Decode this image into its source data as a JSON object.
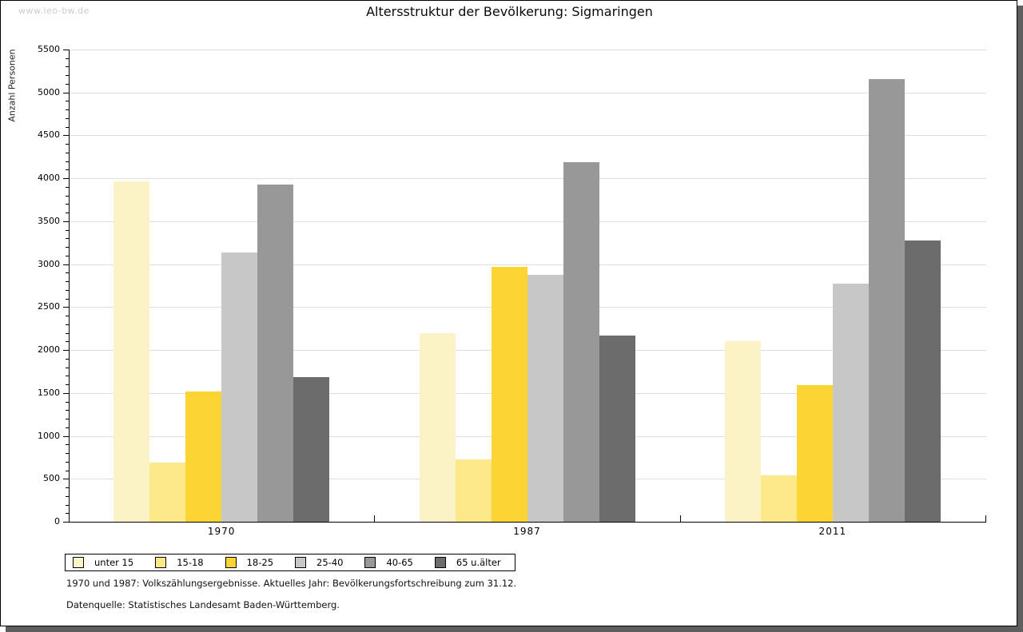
{
  "watermark": "www.leo-bw.de",
  "title": "Altersstruktur der Bevölkerung: Sigmaringen",
  "chart_data": {
    "type": "bar",
    "title": "Altersstruktur der Bevölkerung: Sigmaringen",
    "xlabel": "",
    "ylabel": "Anzahl Personen",
    "ylim": [
      0,
      5500
    ],
    "ytick_step": 500,
    "ytick_minor_step": 100,
    "yticks": [
      0,
      500,
      1000,
      1500,
      2000,
      2500,
      3000,
      3500,
      4000,
      4500,
      5000,
      5500
    ],
    "grid": true,
    "legend_position": "bottom",
    "categories": [
      "1970",
      "1987",
      "2011"
    ],
    "series": [
      {
        "name": "unter 15",
        "color": "#FBF3C5",
        "values": [
          3960,
          2200,
          2100
        ]
      },
      {
        "name": "15-18",
        "color": "#FDE98A",
        "values": [
          690,
          730,
          540
        ]
      },
      {
        "name": "18-25",
        "color": "#FCD535",
        "values": [
          1520,
          2970,
          1590
        ]
      },
      {
        "name": "25-40",
        "color": "#C7C7C7",
        "values": [
          3140,
          2880,
          2770
        ]
      },
      {
        "name": "40-65",
        "color": "#989898",
        "values": [
          3930,
          4190,
          5160
        ]
      },
      {
        "name": "65 u.älter",
        "color": "#6C6C6C",
        "values": [
          1680,
          2170,
          3280
        ]
      }
    ]
  },
  "notes": {
    "line1": "1970 und 1987: Volkszählungsergebnisse. Aktuelles Jahr: Bevölkerungsfortschreibung zum 31.12.",
    "line2": "Datenquelle: Statistisches Landesamt Baden-Württemberg."
  },
  "colors": {
    "grid": "#DEDEDE",
    "axis": "#000000",
    "shadow": "#5E5E5E",
    "watermark": "#CCCCCC",
    "title_text": "#0A0A0A"
  }
}
